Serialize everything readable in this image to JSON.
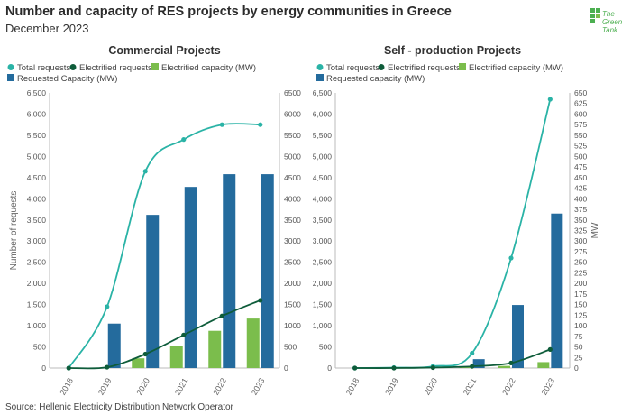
{
  "header": {
    "title": "Number and capacity of RES projects by energy communities in Greece",
    "subtitle": "December 2023",
    "logo_text": "The Green Tank"
  },
  "footer": {
    "source": "Source: Hellenic Electricity Distribution Network Operator"
  },
  "colors": {
    "total_requests": "#2ab3a6",
    "electrified_requests": "#0e5c3a",
    "electrified_capacity": "#7bbd4c",
    "requested_capacity": "#246b9d",
    "logo": "#4caf50"
  },
  "chart_data": [
    {
      "type": "bar",
      "title": "Commercial Projects",
      "categories": [
        "2018",
        "2019",
        "2020",
        "2021",
        "2022",
        "2023"
      ],
      "ylabel_left": "Number of requests",
      "ylabel_right": "",
      "ylim_left": [
        0,
        6500
      ],
      "yticks_left": [
        "0",
        "500",
        "1,000",
        "1,500",
        "2,000",
        "2,500",
        "3,000",
        "3,500",
        "4,000",
        "4,500",
        "5,000",
        "5,500",
        "6,000",
        "6,500"
      ],
      "ylim_right": [
        0,
        6500
      ],
      "yticks_right": [
        "0",
        "500",
        "1000",
        "1500",
        "2000",
        "2500",
        "3000",
        "3500",
        "4000",
        "4500",
        "5000",
        "5500",
        "6000",
        "6500"
      ],
      "legend": [
        {
          "name": "Total requests",
          "kind": "line",
          "color": "#2ab3a6"
        },
        {
          "name": "Electrified requests",
          "kind": "line",
          "color": "#0e5c3a"
        },
        {
          "name": "Electrified capacity (MW)",
          "kind": "bar",
          "color": "#7bbd4c"
        },
        {
          "name": "Requested Capacity (MW)",
          "kind": "bar",
          "color": "#246b9d"
        }
      ],
      "series": [
        {
          "name": "Total requests",
          "kind": "line",
          "axis": "left",
          "values": [
            0,
            1450,
            4650,
            5400,
            5750,
            5750
          ]
        },
        {
          "name": "Electrified requests",
          "kind": "line",
          "axis": "left",
          "values": [
            0,
            20,
            330,
            780,
            1230,
            1600
          ]
        },
        {
          "name": "Electrified capacity (MW)",
          "kind": "bar",
          "axis": "right",
          "values": [
            0,
            0,
            230,
            520,
            880,
            1170
          ]
        },
        {
          "name": "Requested Capacity (MW)",
          "kind": "bar",
          "axis": "right",
          "values": [
            0,
            1050,
            3620,
            4280,
            4580,
            4580
          ]
        }
      ]
    },
    {
      "type": "bar",
      "title": "Self - production Projects",
      "categories": [
        "2018",
        "2019",
        "2020",
        "2021",
        "2022",
        "2023"
      ],
      "ylabel_left": "",
      "ylabel_right": "MW",
      "ylim_left": [
        0,
        6500
      ],
      "yticks_left": [
        "0",
        "500",
        "1,000",
        "1,500",
        "2,000",
        "2,500",
        "3,000",
        "3,500",
        "4,000",
        "4,500",
        "5,000",
        "5,500",
        "6,000",
        "6,500"
      ],
      "ylim_right": [
        0,
        650
      ],
      "yticks_right": [
        "0",
        "25",
        "50",
        "75",
        "100",
        "125",
        "150",
        "175",
        "200",
        "225",
        "250",
        "275",
        "300",
        "325",
        "350",
        "375",
        "400",
        "425",
        "450",
        "475",
        "500",
        "525",
        "550",
        "575",
        "600",
        "625",
        "650"
      ],
      "legend": [
        {
          "name": "Total requests",
          "kind": "line",
          "color": "#2ab3a6"
        },
        {
          "name": "Electrified requests",
          "kind": "line",
          "color": "#0e5c3a"
        },
        {
          "name": "Electrified capacity (MW)",
          "kind": "bar",
          "color": "#7bbd4c"
        },
        {
          "name": "Requested capacity (MW)",
          "kind": "bar",
          "color": "#246b9d"
        }
      ],
      "series": [
        {
          "name": "Total requests",
          "kind": "line",
          "axis": "right",
          "values": [
            0,
            1,
            4,
            35,
            260,
            635
          ]
        },
        {
          "name": "Electrified requests",
          "kind": "line",
          "axis": "right",
          "values": [
            0,
            0,
            1,
            4,
            12,
            44
          ]
        },
        {
          "name": "Electrified capacity (MW)",
          "kind": "bar",
          "axis": "right",
          "values": [
            0,
            0,
            0,
            2,
            5,
            14
          ]
        },
        {
          "name": "Requested capacity (MW)",
          "kind": "bar",
          "axis": "right",
          "values": [
            0,
            0,
            0,
            21,
            149,
            365
          ]
        }
      ]
    }
  ]
}
